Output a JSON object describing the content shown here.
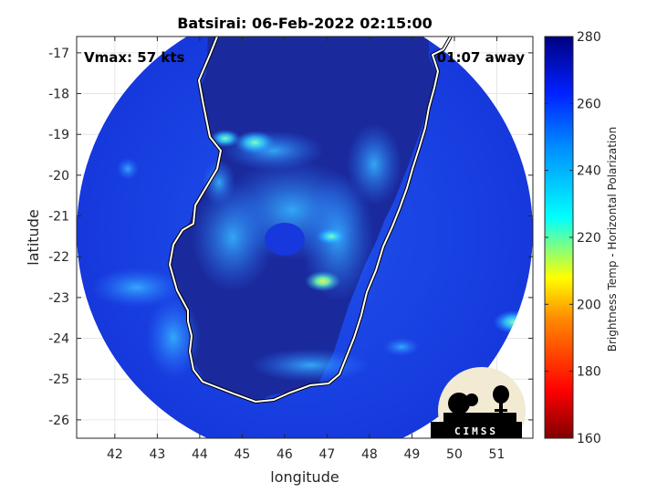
{
  "chart_data": {
    "type": "heatmap",
    "title": "Batsirai: 06-Feb-2022 02:15:00",
    "xlabel": "longitude",
    "ylabel": "latitude",
    "xlim": [
      41.1,
      51.85
    ],
    "ylim": [
      -26.45,
      -16.6
    ],
    "x_ticks": [
      42,
      43,
      44,
      45,
      46,
      47,
      48,
      49,
      50,
      51
    ],
    "y_ticks": [
      -17,
      -18,
      -19,
      -20,
      -21,
      -22,
      -23,
      -24,
      -25,
      -26
    ],
    "grid": true,
    "annotations": {
      "vmax": "Vmax: 57 kts",
      "time_away": "01:07 away"
    },
    "colorbar": {
      "label": "Brightness Temp - Horizontal Polarization",
      "range": [
        160,
        280
      ],
      "ticks": [
        160,
        180,
        200,
        220,
        240,
        260,
        280
      ],
      "colormap": "jet",
      "stops": [
        "#800000",
        "#ff0000",
        "#ff8000",
        "#ffff00",
        "#00ffff",
        "#0080ff",
        "#0000ff",
        "#000080"
      ]
    },
    "swath": {
      "center": [
        46.35,
        -21.6
      ],
      "radius_deg": 5.4,
      "background_temp": 262
    },
    "cold_spots": [
      {
        "lon": 45.3,
        "lat": -19.2,
        "temp": 238
      },
      {
        "lon": 46.9,
        "lat": -22.6,
        "temp": 218
      },
      {
        "lon": 47.1,
        "lat": -21.5,
        "temp": 244
      },
      {
        "lon": 44.6,
        "lat": -19.1,
        "temp": 246
      },
      {
        "lon": 51.4,
        "lat": -23.6,
        "temp": 236
      }
    ]
  },
  "logo": {
    "text": "CIMSS"
  }
}
